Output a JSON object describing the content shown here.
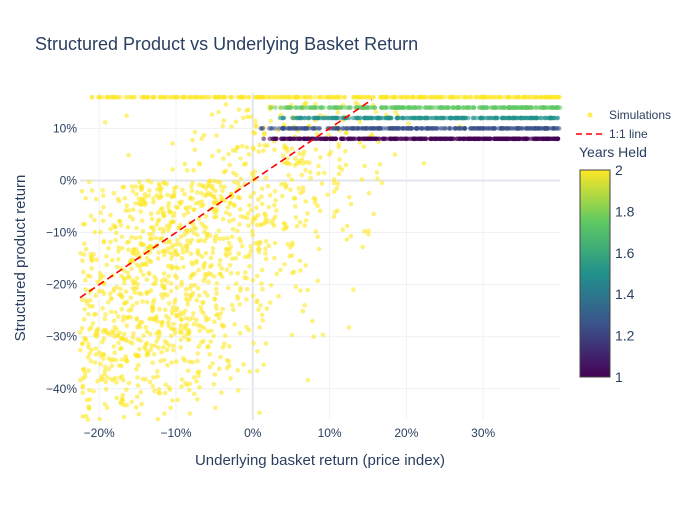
{
  "chart_data": {
    "type": "scatter",
    "title": "Structured Product vs Underlying Basket Return",
    "xlabel": "Underlying basket return (price index)",
    "ylabel": "Structured product return",
    "xlim": [
      -0.225,
      0.4
    ],
    "ylim": [
      -0.46,
      0.168
    ],
    "x_ticks": [
      -0.2,
      -0.1,
      0,
      0.1,
      0.2,
      0.3
    ],
    "x_tick_labels": [
      "−20%",
      "−10%",
      "0%",
      "10%",
      "20%",
      "30%"
    ],
    "y_ticks": [
      -0.4,
      -0.3,
      -0.2,
      -0.1,
      0,
      0.1
    ],
    "y_tick_labels": [
      "−40%",
      "−30%",
      "−20%",
      "−10%",
      "0%",
      "10%"
    ],
    "grid": true,
    "legend_position": "top-right",
    "colorscale": [
      "#440154",
      "#3b528b",
      "#21918c",
      "#5ec962",
      "#fde725"
    ],
    "colorbar": {
      "title": "Years Held",
      "range": [
        1,
        2
      ],
      "ticks": [
        1,
        1.2,
        1.4,
        1.6,
        1.8,
        2
      ],
      "tick_labels": [
        "1",
        "1.2",
        "1.4",
        "1.6",
        "1.8",
        "2"
      ]
    },
    "series": [
      {
        "name": "Simulations",
        "kind": "markers",
        "clusters": [
          {
            "years_held": 2,
            "y_band": [
              -0.46,
              0.0
            ],
            "x_center": -0.08,
            "x_spread": 0.09,
            "slope_to_x": 0.9,
            "count": 1300
          },
          {
            "years_held": 2,
            "y_band": [
              0.0,
              0.15
            ],
            "x_center": 0.05,
            "x_spread": 0.07,
            "count": 180
          },
          {
            "years_held": 2,
            "y_constant": 0.16,
            "x_range": [
              -0.21,
              0.4
            ],
            "count": 330
          },
          {
            "years_held": 1.0,
            "y_constant": 0.08,
            "x_range": [
              0.01,
              0.4
            ],
            "count": 380
          },
          {
            "years_held": 1.25,
            "y_constant": 0.1,
            "x_range": [
              0.01,
              0.4
            ],
            "count": 300
          },
          {
            "years_held": 1.5,
            "y_constant": 0.12,
            "x_range": [
              0.03,
              0.4
            ],
            "count": 260
          },
          {
            "years_held": 1.75,
            "y_constant": 0.14,
            "x_range": [
              0.02,
              0.4
            ],
            "count": 250
          }
        ]
      },
      {
        "name": "1:1 line",
        "kind": "line",
        "color": "#ff0000",
        "dash": "dashed",
        "x": [
          -0.225,
          0.155
        ],
        "y": [
          -0.225,
          0.155
        ]
      }
    ]
  }
}
